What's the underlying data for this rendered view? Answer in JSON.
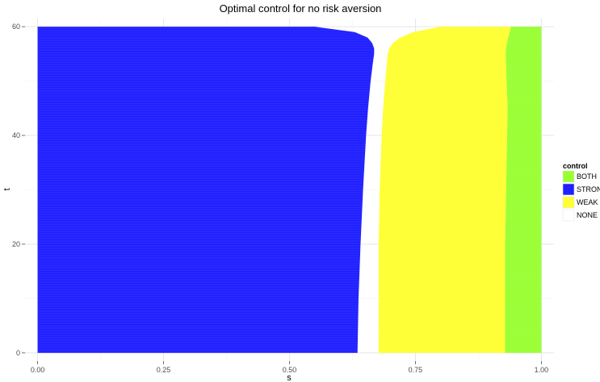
{
  "chart_data": {
    "type": "heatmap",
    "title": "Optimal control for no risk aversion",
    "xlabel": "s",
    "ylabel": "t",
    "xlim": [
      -0.025,
      1.025
    ],
    "ylim": [
      -1.5,
      61.5
    ],
    "x_ticks": [
      0.0,
      0.25,
      0.5,
      0.75,
      1.0
    ],
    "x_tick_labels": [
      "0.00",
      "0.25",
      "0.50",
      "0.75",
      "1.00"
    ],
    "y_ticks": [
      0,
      20,
      40,
      60
    ],
    "y_tick_labels": [
      "0",
      "20",
      "40",
      "60"
    ],
    "grid": true,
    "legend_position": "right",
    "legend": {
      "title": "control",
      "entries": [
        {
          "label": "BOTH",
          "color": "#99ff33"
        },
        {
          "label": "STRONG",
          "color": "#1f1fff"
        },
        {
          "label": "WEAK",
          "color": "#ffff33"
        },
        {
          "label": "NONE",
          "color": "#ffffff"
        }
      ]
    },
    "boundaries": {
      "t": [
        0,
        10,
        20,
        30,
        40,
        45,
        50,
        53,
        55,
        56,
        57,
        58,
        59,
        60
      ],
      "strong_to_none": [
        0.635,
        0.637,
        0.641,
        0.646,
        0.652,
        0.656,
        0.661,
        0.665,
        0.668,
        0.668,
        0.664,
        0.655,
        0.63,
        0.55
      ],
      "none_to_weak": [
        0.677,
        0.677,
        0.677,
        0.679,
        0.683,
        0.686,
        0.69,
        0.693,
        0.695,
        0.698,
        0.705,
        0.72,
        0.745,
        0.8
      ],
      "weak_to_both": [
        0.928,
        0.928,
        0.928,
        0.93,
        0.932,
        0.933,
        0.931,
        0.93,
        0.929,
        0.93,
        0.932,
        0.934,
        0.937,
        0.94
      ]
    }
  }
}
